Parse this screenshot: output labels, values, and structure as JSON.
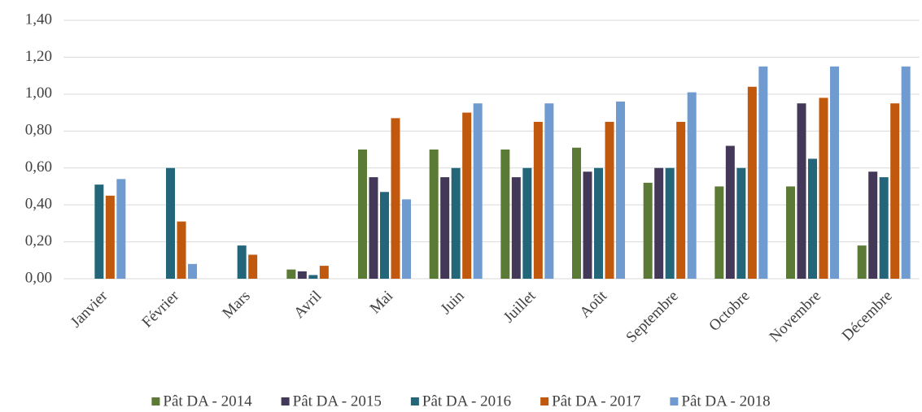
{
  "chart_data": {
    "type": "bar",
    "categories": [
      "Janvier",
      "Février",
      "Mars",
      "Avril",
      "Mai",
      "Juin",
      "Juillet",
      "Août",
      "Septembre",
      "Octobre",
      "Novembre",
      "Décembre"
    ],
    "series": [
      {
        "name": "Pât DA - 2014",
        "color": "#5b7a35",
        "values": [
          null,
          null,
          null,
          0.05,
          0.7,
          0.7,
          0.7,
          0.71,
          0.52,
          0.5,
          0.5,
          0.18
        ]
      },
      {
        "name": "Pât DA - 2015",
        "color": "#433857",
        "values": [
          null,
          null,
          null,
          0.04,
          0.55,
          0.55,
          0.55,
          0.58,
          0.6,
          0.72,
          0.95,
          0.58
        ]
      },
      {
        "name": "Pât DA - 2016",
        "color": "#23667a",
        "values": [
          0.51,
          0.6,
          0.18,
          0.02,
          0.47,
          0.6,
          0.6,
          0.6,
          0.6,
          0.6,
          0.65,
          0.55
        ]
      },
      {
        "name": "Pât DA - 2017",
        "color": "#c0580d",
        "values": [
          0.45,
          0.31,
          0.13,
          0.07,
          0.87,
          0.9,
          0.85,
          0.85,
          0.85,
          1.04,
          0.98,
          0.95
        ]
      },
      {
        "name": "Pât DA - 2018",
        "color": "#6f9bd0",
        "values": [
          0.54,
          0.08,
          null,
          null,
          0.43,
          0.95,
          0.95,
          0.96,
          1.01,
          1.15,
          1.15,
          1.15
        ]
      }
    ],
    "ylim": [
      0,
      1.4
    ],
    "yticks": [
      {
        "value": 0,
        "label": "0,00"
      },
      {
        "value": 0.2,
        "label": "0,20"
      },
      {
        "value": 0.4,
        "label": "0,40"
      },
      {
        "value": 0.6,
        "label": "0,60"
      },
      {
        "value": 0.8,
        "label": "0,80"
      },
      {
        "value": 1.0,
        "label": "1,00"
      },
      {
        "value": 1.2,
        "label": "1,20"
      },
      {
        "value": 1.4,
        "label": "1,40"
      }
    ],
    "grid": true,
    "legend": "bottom"
  }
}
